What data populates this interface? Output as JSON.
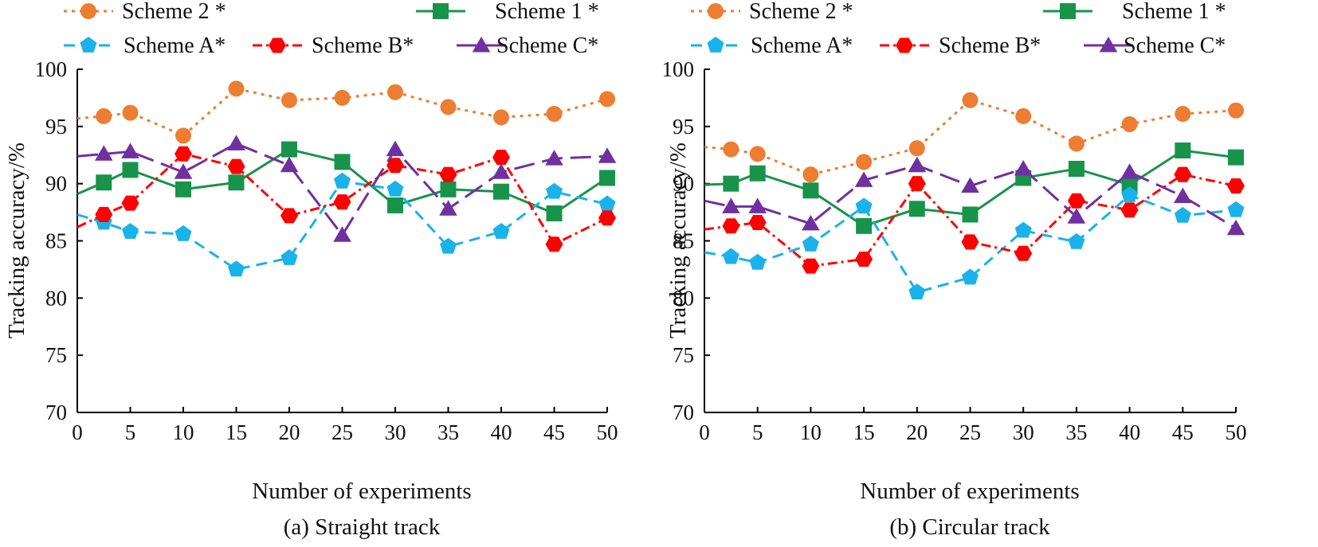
{
  "figure": {
    "legend": [
      {
        "key": "s2",
        "label": "Scheme 2 *",
        "color": "#ED7D31",
        "marker": "circle",
        "dash": "4,6"
      },
      {
        "key": "s1",
        "label": "Scheme 1 *",
        "color": "#17944A",
        "marker": "square",
        "dash": ""
      },
      {
        "key": "sa",
        "label": "Scheme A*",
        "color": "#19B2EB",
        "marker": "pentagon",
        "dash": "14,8"
      },
      {
        "key": "sb",
        "label": "Scheme B*",
        "color": "#FF0000",
        "marker": "hexagon",
        "dash": "12,5,3,5"
      },
      {
        "key": "sc",
        "label": "Scheme C*",
        "color": "#7030A0",
        "marker": "triangle",
        "dash": "26,10"
      }
    ]
  },
  "chart_data": [
    {
      "type": "line",
      "caption": "(a) Straight track",
      "xlabel": "Number of experiments",
      "ylabel": "Tracking accuracy/%",
      "xlim": [
        0,
        50
      ],
      "ylim": [
        70,
        100
      ],
      "xticks": [
        0,
        5,
        10,
        15,
        20,
        25,
        30,
        35,
        40,
        45,
        50
      ],
      "yticks": [
        70,
        75,
        80,
        85,
        90,
        95,
        100
      ],
      "x": [
        0,
        2.5,
        5,
        10,
        15,
        20,
        25,
        30,
        35,
        40,
        45,
        50
      ],
      "series": [
        {
          "key": "s2",
          "name": "Scheme 2 *",
          "values": [
            95.7,
            95.9,
            96.2,
            94.2,
            98.3,
            97.3,
            97.5,
            98.0,
            96.7,
            95.8,
            96.1,
            97.4
          ]
        },
        {
          "key": "s1",
          "name": "Scheme 1 *",
          "values": [
            89.1,
            90.1,
            91.2,
            89.5,
            90.1,
            93.0,
            91.9,
            88.1,
            89.5,
            89.3,
            87.4,
            90.5
          ]
        },
        {
          "key": "sa",
          "name": "Scheme A*",
          "values": [
            87.3,
            86.6,
            85.8,
            85.6,
            82.5,
            83.5,
            90.2,
            89.5,
            84.5,
            85.8,
            89.3,
            88.2
          ]
        },
        {
          "key": "sb",
          "name": "Scheme B*",
          "values": [
            86.2,
            87.3,
            88.3,
            92.6,
            91.5,
            87.2,
            88.4,
            91.6,
            90.8,
            92.3,
            84.7,
            87.0
          ]
        },
        {
          "key": "sc",
          "name": "Scheme C*",
          "values": [
            92.4,
            92.6,
            92.8,
            91.0,
            93.5,
            91.6,
            85.5,
            93.0,
            87.8,
            91.0,
            92.2,
            92.4
          ]
        }
      ]
    },
    {
      "type": "line",
      "caption": "(b) Circular track",
      "xlabel": "Number of experiments",
      "ylabel": "Tracking accuracy/%",
      "xlim": [
        0,
        50
      ],
      "ylim": [
        70,
        100
      ],
      "xticks": [
        0,
        5,
        10,
        15,
        20,
        25,
        30,
        35,
        40,
        45,
        50
      ],
      "yticks": [
        70,
        75,
        80,
        85,
        90,
        95,
        100
      ],
      "x": [
        0,
        2.5,
        5,
        10,
        15,
        20,
        25,
        30,
        35,
        40,
        45,
        50
      ],
      "series": [
        {
          "key": "s2",
          "name": "Scheme 2 *",
          "values": [
            93.2,
            93.0,
            92.6,
            90.8,
            91.9,
            93.1,
            97.3,
            95.9,
            93.5,
            95.2,
            96.1,
            96.4
          ]
        },
        {
          "key": "s1",
          "name": "Scheme 1 *",
          "values": [
            89.9,
            90.0,
            90.9,
            89.4,
            86.3,
            87.8,
            87.3,
            90.5,
            91.3,
            89.9,
            92.9,
            92.3
          ]
        },
        {
          "key": "sa",
          "name": "Scheme A*",
          "values": [
            84.0,
            83.6,
            83.1,
            84.7,
            88.0,
            80.5,
            81.8,
            85.9,
            84.9,
            89.0,
            87.2,
            87.7
          ]
        },
        {
          "key": "sb",
          "name": "Scheme B*",
          "values": [
            86.0,
            86.3,
            86.6,
            82.8,
            83.4,
            90.0,
            84.9,
            83.9,
            88.5,
            87.7,
            90.8,
            89.8
          ]
        },
        {
          "key": "sc",
          "name": "Scheme C*",
          "values": [
            88.5,
            88.0,
            88.0,
            86.5,
            90.3,
            91.6,
            89.8,
            91.3,
            87.1,
            91.0,
            88.9,
            86.1
          ]
        }
      ]
    }
  ]
}
